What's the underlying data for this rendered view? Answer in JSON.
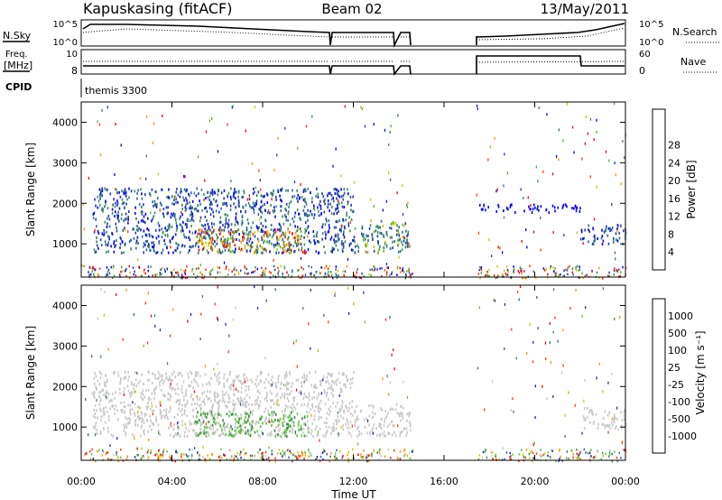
{
  "header": {
    "station": "Kapuskasing (fitACF)",
    "beam": "Beam 02",
    "date": "13/May/2011"
  },
  "panels": {
    "nsky_label": "N.Sky",
    "nsky_ticks": [
      "10^5",
      "10^0"
    ],
    "nsearch_label": "N.Search",
    "freq_label_1": "Freq.",
    "freq_label_2": "[MHz]",
    "freq_ticks": [
      "10",
      "8"
    ],
    "nave_label": "Nave",
    "nave_ticks": [
      "60",
      "0"
    ],
    "cpid_label": "CPID",
    "cpid_value": "themis 3300"
  },
  "chart_data": [
    {
      "type": "heatmap",
      "title": "",
      "xlabel": "",
      "ylabel": "Slant Range [km]",
      "xlim": [
        "00:00",
        "24:00"
      ],
      "ylim": [
        180,
        4500
      ],
      "y_ticks": [
        1000,
        2000,
        3000,
        4000
      ],
      "colorbar": {
        "label": "Power [dB]",
        "ticks": [
          4,
          8,
          12,
          16,
          20,
          24,
          28
        ],
        "colors": [
          "#0000ff",
          "#1e3cb4",
          "#2d6e8c",
          "#3c8c64",
          "#50b43c",
          "#c8c800",
          "#ff9600",
          "#ff3c00",
          "#ff0000"
        ]
      },
      "regions": [
        {
          "from": "00:30",
          "to": "12:00",
          "range_km": [
            800,
            2400
          ],
          "level": "4-16 dB"
        },
        {
          "from": "05:00",
          "to": "10:00",
          "range_km": [
            800,
            1400
          ],
          "level": "16-28 dB"
        },
        {
          "from": "12:00",
          "to": "14:30",
          "range_km": [
            800,
            1600
          ],
          "level": "8-20 dB"
        },
        {
          "from": "17:30",
          "to": "22:00",
          "range_km": [
            1800,
            2000
          ],
          "level": "4 dB"
        },
        {
          "from": "22:00",
          "to": "24:00",
          "range_km": [
            1000,
            1500
          ],
          "level": "4-12 dB"
        }
      ]
    },
    {
      "type": "heatmap",
      "title": "",
      "xlabel": "Time UT",
      "ylabel": "Slant Range [km]",
      "xlim": [
        "00:00",
        "24:00"
      ],
      "x_ticks": [
        "00:00",
        "04:00",
        "08:00",
        "12:00",
        "16:00",
        "20:00",
        "00:00"
      ],
      "ylim": [
        180,
        4500
      ],
      "y_ticks": [
        1000,
        2000,
        3000,
        4000
      ],
      "colorbar": {
        "label": "Velocity [m s⁻¹]",
        "ticks": [
          1000,
          500,
          100,
          25,
          -25,
          -100,
          -500,
          -1000
        ],
        "colors": [
          "#1e28b4",
          "#2d64a0",
          "#3c8c50",
          "#64c83c",
          "#c8c8c8",
          "#c8c800",
          "#ff9600",
          "#ff3c00",
          "#ff0000"
        ]
      },
      "regions": [
        {
          "from": "00:30",
          "to": "12:00",
          "range_km": [
            800,
            2400
          ],
          "level": "-25 to 25 m/s"
        },
        {
          "from": "05:00",
          "to": "10:00",
          "range_km": [
            800,
            1400
          ],
          "level": "25 to 500 m/s"
        },
        {
          "from": "12:00",
          "to": "14:30",
          "range_km": [
            800,
            1600
          ],
          "level": "-25 to 25 m/s"
        },
        {
          "from": "22:00",
          "to": "24:00",
          "range_km": [
            1000,
            1500
          ],
          "level": "-25 to 25 m/s"
        }
      ]
    }
  ],
  "colors": {
    "ground_scatter": "#b4b4b4",
    "axes": "#000000"
  }
}
